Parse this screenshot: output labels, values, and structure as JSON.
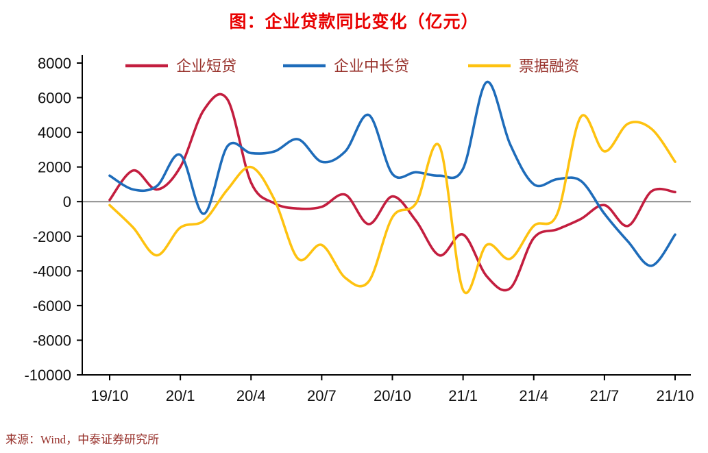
{
  "header": {
    "title": "图：企业贷款同比变化（亿元）"
  },
  "source": {
    "text": "来源：Wind，中泰证券研究所"
  },
  "colors": {
    "title": "#e80000",
    "source_text": "#97302a",
    "axis": "#000000",
    "zero_line": "#8c8c8c",
    "series_red": "#c31e3f",
    "series_blue": "#1e6cba",
    "series_yellow": "#fec210"
  },
  "chart_data": {
    "type": "line",
    "title": "图：企业贷款同比变化（亿元）",
    "xlabel": "",
    "ylabel": "",
    "ylim": [
      -10000,
      8000
    ],
    "yticks": [
      8000,
      6000,
      4000,
      2000,
      0,
      -2000,
      -4000,
      -6000,
      -8000,
      -10000
    ],
    "xtick_every": 3,
    "grid": false,
    "legend_position": "top-inside",
    "categories": [
      "19/10",
      "19/11",
      "19/12",
      "20/1",
      "20/2",
      "20/3",
      "20/4",
      "20/5",
      "20/6",
      "20/7",
      "20/8",
      "20/9",
      "20/10",
      "20/11",
      "20/12",
      "21/1",
      "21/2",
      "21/3",
      "21/4",
      "21/5",
      "21/6",
      "21/7",
      "21/8",
      "21/9",
      "21/10"
    ],
    "series": [
      {
        "name": "企业短贷",
        "color": "#c31e3f",
        "values": [
          100,
          1800,
          700,
          2000,
          5300,
          5900,
          1100,
          -100,
          -400,
          -300,
          400,
          -1300,
          300,
          -1100,
          -3100,
          -1900,
          -4300,
          -5000,
          -2100,
          -1600,
          -1000,
          -200,
          -1400,
          600,
          550
        ]
      },
      {
        "name": "企业中长贷",
        "color": "#1e6cba",
        "values": [
          1500,
          700,
          900,
          2700,
          -700,
          3200,
          2800,
          2900,
          3600,
          2300,
          2900,
          5000,
          1600,
          1700,
          1500,
          1900,
          6900,
          3300,
          1000,
          1300,
          1200,
          -700,
          -2300,
          -3700,
          -1900
        ]
      },
      {
        "name": "票据融资",
        "color": "#fec210",
        "values": [
          -200,
          -1500,
          -3100,
          -1500,
          -1100,
          700,
          2000,
          100,
          -3300,
          -2500,
          -4400,
          -4600,
          -900,
          -100,
          3200,
          -5100,
          -2500,
          -3300,
          -1400,
          -700,
          4900,
          2900,
          4500,
          4200,
          2300
        ]
      }
    ]
  }
}
